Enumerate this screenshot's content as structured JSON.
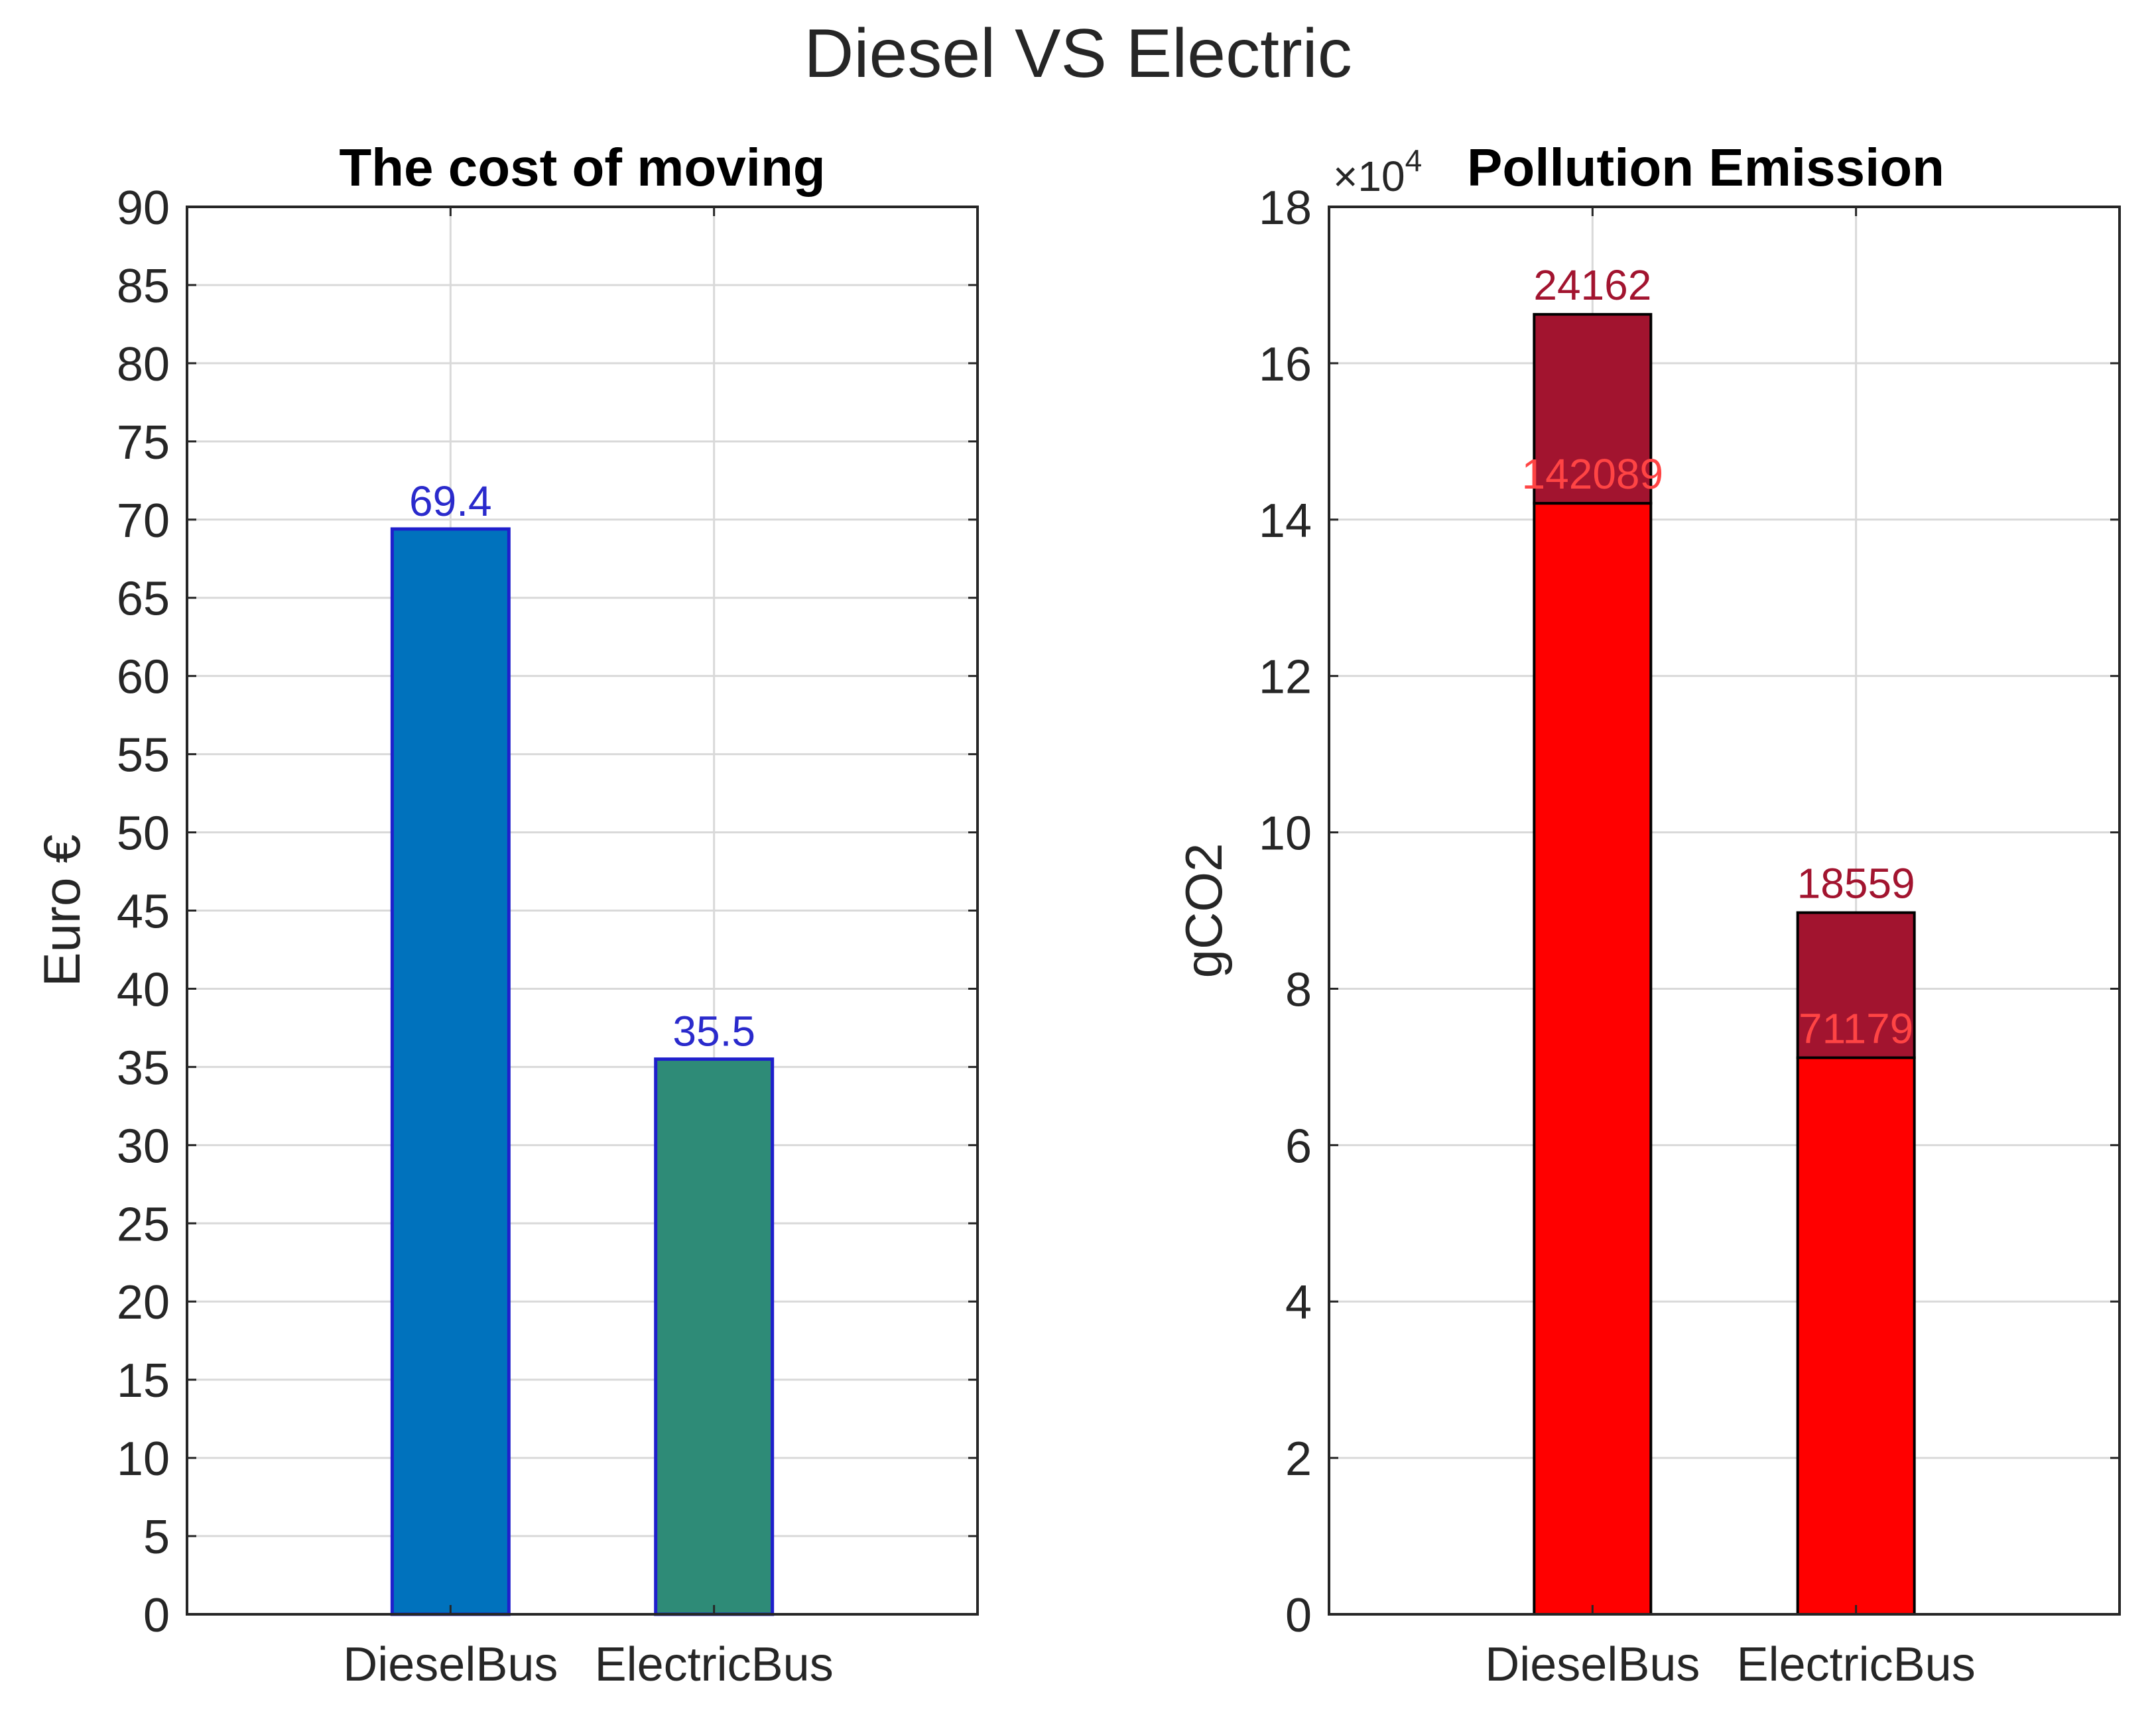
{
  "figure": {
    "title": "Diesel VS Electric"
  },
  "chart_data": [
    {
      "type": "bar",
      "title": "The cost of moving",
      "categories": [
        "DieselBus",
        "ElectricBus"
      ],
      "values": [
        69.4,
        35.5
      ],
      "value_labels": [
        "69.4",
        "35.5"
      ],
      "bar_colors": [
        "#0072bd",
        "#2e8b77"
      ],
      "edge_color": "#1f1fcc",
      "label_color": "#2a2acc",
      "xlabel": "",
      "ylabel": "Euro €",
      "ylim": [
        0,
        90
      ],
      "yticks": [
        0,
        5,
        10,
        15,
        20,
        25,
        30,
        35,
        40,
        45,
        50,
        55,
        60,
        65,
        70,
        75,
        80,
        85,
        90
      ],
      "grid": true
    },
    {
      "type": "bar",
      "stacked": true,
      "title": "Pollution Emission",
      "categories": [
        "DieselBus",
        "ElectricBus"
      ],
      "series": [
        {
          "name": "base",
          "values": [
            142089,
            71179
          ],
          "color": "#ff0000",
          "labels": [
            "142089",
            "71179"
          ],
          "label_color": "#ff4444"
        },
        {
          "name": "top",
          "values": [
            24162,
            18559
          ],
          "color": "#a2142f",
          "labels": [
            "24162",
            "18559"
          ],
          "label_color": "#a2142f"
        }
      ],
      "xlabel": "",
      "ylabel": "gCO2",
      "ylim": [
        0,
        180000
      ],
      "yticks": [
        0,
        20000,
        40000,
        60000,
        80000,
        100000,
        120000,
        140000,
        160000,
        180000
      ],
      "ytick_labels": [
        "0",
        "2",
        "4",
        "6",
        "8",
        "10",
        "12",
        "14",
        "16",
        "18"
      ],
      "exponent_label": "×10",
      "exponent_power": "4",
      "grid": true
    }
  ]
}
